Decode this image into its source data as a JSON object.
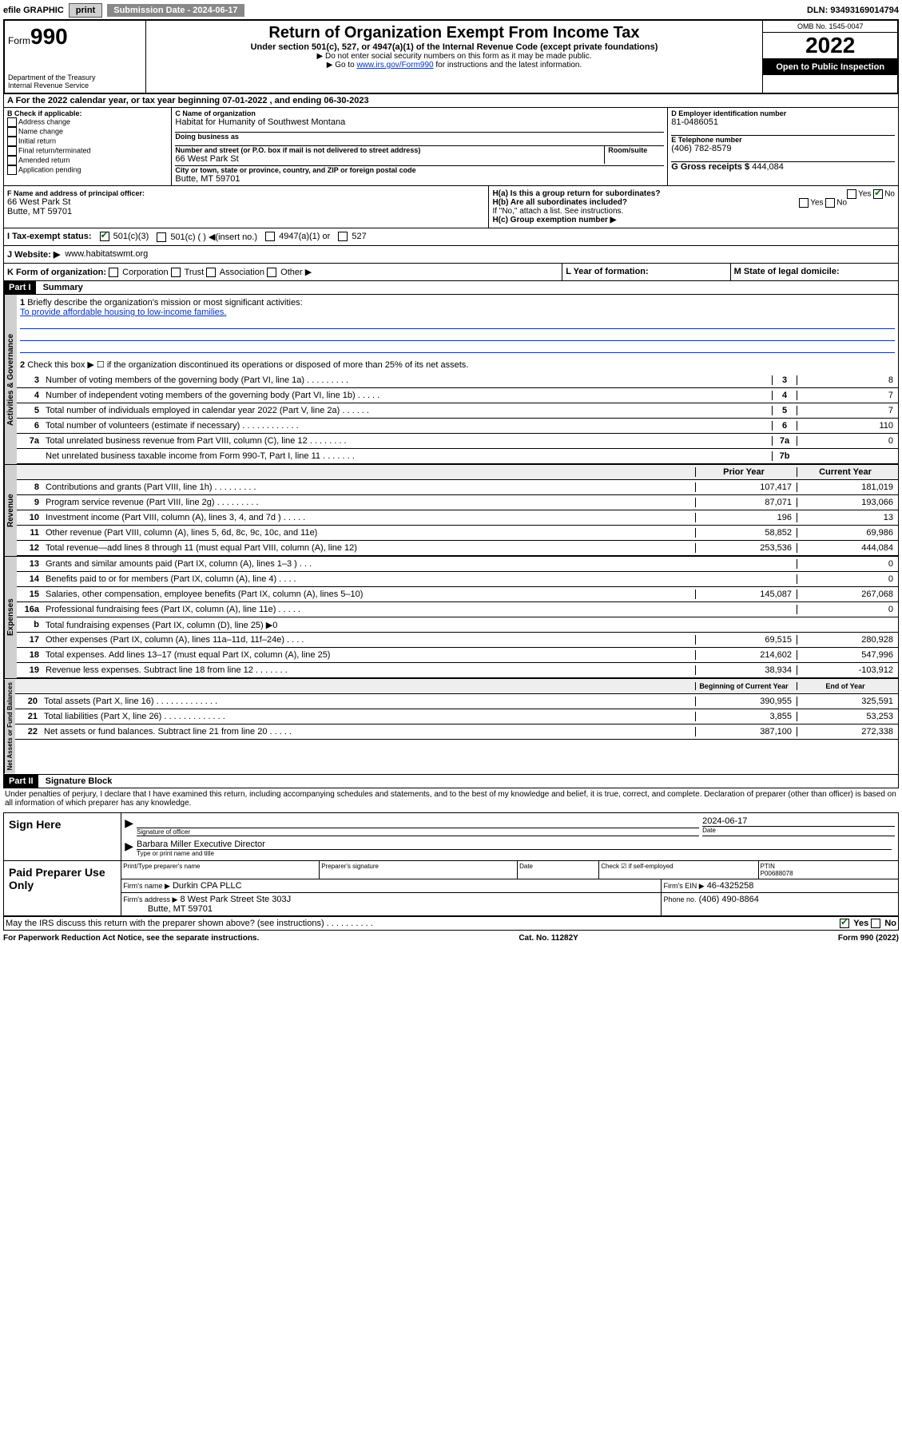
{
  "topbar": {
    "efile": "efile GRAPHIC",
    "print": "print",
    "subdate_label": "Submission Date - 2024-06-17",
    "dln": "DLN: 93493169014794"
  },
  "header": {
    "form_prefix": "Form",
    "form_num": "990",
    "dept": "Department of the Treasury",
    "irs": "Internal Revenue Service",
    "title": "Return of Organization Exempt From Income Tax",
    "subtitle": "Under section 501(c), 527, or 4947(a)(1) of the Internal Revenue Code (except private foundations)",
    "inst1": "▶ Do not enter social security numbers on this form as it may be made public.",
    "inst2_pre": "▶ Go to ",
    "inst2_link": "www.irs.gov/Form990",
    "inst2_post": " for instructions and the latest information.",
    "omb": "OMB No. 1545-0047",
    "year": "2022",
    "inspection": "Open to Public Inspection"
  },
  "a_line": "A For the 2022 calendar year, or tax year beginning 07-01-2022    , and ending 06-30-2023",
  "b": {
    "label": "B Check if applicable:",
    "opts": [
      "Address change",
      "Name change",
      "Initial return",
      "Final return/terminated",
      "Amended return",
      "Application pending"
    ]
  },
  "c": {
    "label": "C Name of organization",
    "name": "Habitat for Humanity of Southwest Montana",
    "dba_label": "Doing business as",
    "addr_label": "Number and street (or P.O. box if mail is not delivered to street address)",
    "room": "Room/suite",
    "addr": "66 West Park St",
    "city_label": "City or town, state or province, country, and ZIP or foreign postal code",
    "city": "Butte, MT  59701"
  },
  "d": {
    "label": "D Employer identification number",
    "val": "81-0486051"
  },
  "e": {
    "label": "E Telephone number",
    "val": "(406) 782-8579"
  },
  "g": {
    "label": "G Gross receipts $",
    "val": "444,084"
  },
  "f": {
    "label": "F  Name and address of principal officer:",
    "addr1": "66 West Park St",
    "addr2": "Butte, MT  59701"
  },
  "h": {
    "ha": "H(a)  Is this a group return for subordinates?",
    "hb": "H(b)  Are all subordinates included?",
    "hb_note": "If \"No,\" attach a list. See instructions.",
    "hc": "H(c)  Group exemption number ▶",
    "yes": "Yes",
    "no": "No"
  },
  "i": {
    "label": "I   Tax-exempt status:",
    "c1": "501(c)(3)",
    "c2": "501(c) (  ) ◀(insert no.)",
    "c3": "4947(a)(1) or",
    "c4": "527"
  },
  "j": {
    "label": "J   Website: ▶",
    "val": "www.habitatswmt.org"
  },
  "k": {
    "label": "K Form of organization:",
    "opts": [
      "Corporation",
      "Trust",
      "Association",
      "Other ▶"
    ]
  },
  "l": {
    "label": "L Year of formation:"
  },
  "m": {
    "label": "M State of legal domicile:"
  },
  "part1": {
    "header": "Part I",
    "title": "Summary",
    "q1": "Briefly describe the organization's mission or most significant activities:",
    "mission": "To provide affordable housing to low-income families.",
    "q2": "Check this box ▶ ☐  if the organization discontinued its operations or disposed of more than 25% of its net assets.",
    "lines_gov": [
      {
        "n": "3",
        "t": "Number of voting members of the governing body (Part VI, line 1a)  .    .    .    .    .    .    .    .    .",
        "b": "3",
        "v": "8"
      },
      {
        "n": "4",
        "t": "Number of independent voting members of the governing body (Part VI, line 1b)  .    .    .    .    .",
        "b": "4",
        "v": "7"
      },
      {
        "n": "5",
        "t": "Total number of individuals employed in calendar year 2022 (Part V, line 2a)  .    .    .    .    .    .",
        "b": "5",
        "v": "7"
      },
      {
        "n": "6",
        "t": "Total number of volunteers (estimate if necessary)  .    .    .    .    .    .    .    .    .    .    .    .",
        "b": "6",
        "v": "110"
      },
      {
        "n": "7a",
        "t": "Total unrelated business revenue from Part VIII, column (C), line 12  .    .    .    .    .    .    .    .",
        "b": "7a",
        "v": "0"
      },
      {
        "n": "",
        "t": "Net unrelated business taxable income from Form 990-T, Part I, line 11  .    .    .    .    .    .    .",
        "b": "7b",
        "v": ""
      }
    ],
    "col_prior": "Prior Year",
    "col_curr": "Current Year",
    "lines_rev": [
      {
        "n": "8",
        "t": "Contributions and grants (Part VIII, line 1h)  .    .    .    .    .    .    .    .    .",
        "p": "107,417",
        "c": "181,019"
      },
      {
        "n": "9",
        "t": "Program service revenue (Part VIII, line 2g)  .    .    .    .    .    .    .    .    .",
        "p": "87,071",
        "c": "193,066"
      },
      {
        "n": "10",
        "t": "Investment income (Part VIII, column (A), lines 3, 4, and 7d )  .    .    .    .    .",
        "p": "196",
        "c": "13"
      },
      {
        "n": "11",
        "t": "Other revenue (Part VIII, column (A), lines 5, 6d, 8c, 9c, 10c, and 11e)",
        "p": "58,852",
        "c": "69,986"
      },
      {
        "n": "12",
        "t": "Total revenue—add lines 8 through 11 (must equal Part VIII, column (A), line 12)",
        "p": "253,536",
        "c": "444,084"
      }
    ],
    "lines_exp": [
      {
        "n": "13",
        "t": "Grants and similar amounts paid (Part IX, column (A), lines 1–3 )  .    .    .",
        "p": "",
        "c": "0"
      },
      {
        "n": "14",
        "t": "Benefits paid to or for members (Part IX, column (A), line 4)  .    .    .    .",
        "p": "",
        "c": "0"
      },
      {
        "n": "15",
        "t": "Salaries, other compensation, employee benefits (Part IX, column (A), lines 5–10)",
        "p": "145,087",
        "c": "267,068"
      },
      {
        "n": "16a",
        "t": "Professional fundraising fees (Part IX, column (A), line 11e)  .    .    .    .    .",
        "p": "",
        "c": "0"
      },
      {
        "n": "b",
        "t": "Total fundraising expenses (Part IX, column (D), line 25) ▶0",
        "p": "—",
        "c": "—"
      },
      {
        "n": "17",
        "t": "Other expenses (Part IX, column (A), lines 11a–11d, 11f–24e)  .    .    .    .",
        "p": "69,515",
        "c": "280,928"
      },
      {
        "n": "18",
        "t": "Total expenses. Add lines 13–17 (must equal Part IX, column (A), line 25)",
        "p": "214,602",
        "c": "547,996"
      },
      {
        "n": "19",
        "t": "Revenue less expenses. Subtract line 18 from line 12  .    .    .    .    .    .    .",
        "p": "38,934",
        "c": "-103,912"
      }
    ],
    "col_beg": "Beginning of Current Year",
    "col_end": "End of Year",
    "lines_net": [
      {
        "n": "20",
        "t": "Total assets (Part X, line 16)  .    .    .    .    .    .    .    .    .    .    .    .    .",
        "p": "390,955",
        "c": "325,591"
      },
      {
        "n": "21",
        "t": "Total liabilities (Part X, line 26)  .    .    .    .    .    .    .    .    .    .    .    .    .",
        "p": "3,855",
        "c": "53,253"
      },
      {
        "n": "22",
        "t": "Net assets or fund balances. Subtract line 21 from line 20  .    .    .    .    .",
        "p": "387,100",
        "c": "272,338"
      }
    ]
  },
  "part2": {
    "header": "Part II",
    "title": "Signature Block",
    "declaration": "Under penalties of perjury, I declare that I have examined this return, including accompanying schedules and statements, and to the best of my knowledge and belief, it is true, correct, and complete. Declaration of preparer (other than officer) is based on all information of which preparer has any knowledge.",
    "sign_here": "Sign Here",
    "sig_officer": "Signature of officer",
    "sig_date": "2024-06-17",
    "date_label": "Date",
    "officer_name": "Barbara Miller  Executive Director",
    "name_label": "Type or print name and title",
    "paid": "Paid Preparer Use Only",
    "prep_name_label": "Print/Type preparer's name",
    "prep_sig_label": "Preparer's signature",
    "date2": "Date",
    "check_self": "Check ☑ if self-employed",
    "ptin_label": "PTIN",
    "ptin": "P00688078",
    "firm_name_label": "Firm's name     ▶",
    "firm_name": "Durkin CPA PLLC",
    "firm_ein_label": "Firm's EIN ▶",
    "firm_ein": "46-4325258",
    "firm_addr_label": "Firm's address ▶",
    "firm_addr": "8 West Park Street Ste 303J",
    "firm_city": "Butte, MT  59701",
    "phone_label": "Phone no.",
    "phone": "(406) 490-8864",
    "irs_discuss": "May the IRS discuss this return with the preparer shown above? (see instructions)  .    .    .    .    .    .    .    .    .    .",
    "yes": "Yes",
    "no": "No"
  },
  "footer": {
    "left": "For Paperwork Reduction Act Notice, see the separate instructions.",
    "mid": "Cat. No. 11282Y",
    "right": "Form 990 (2022)"
  }
}
